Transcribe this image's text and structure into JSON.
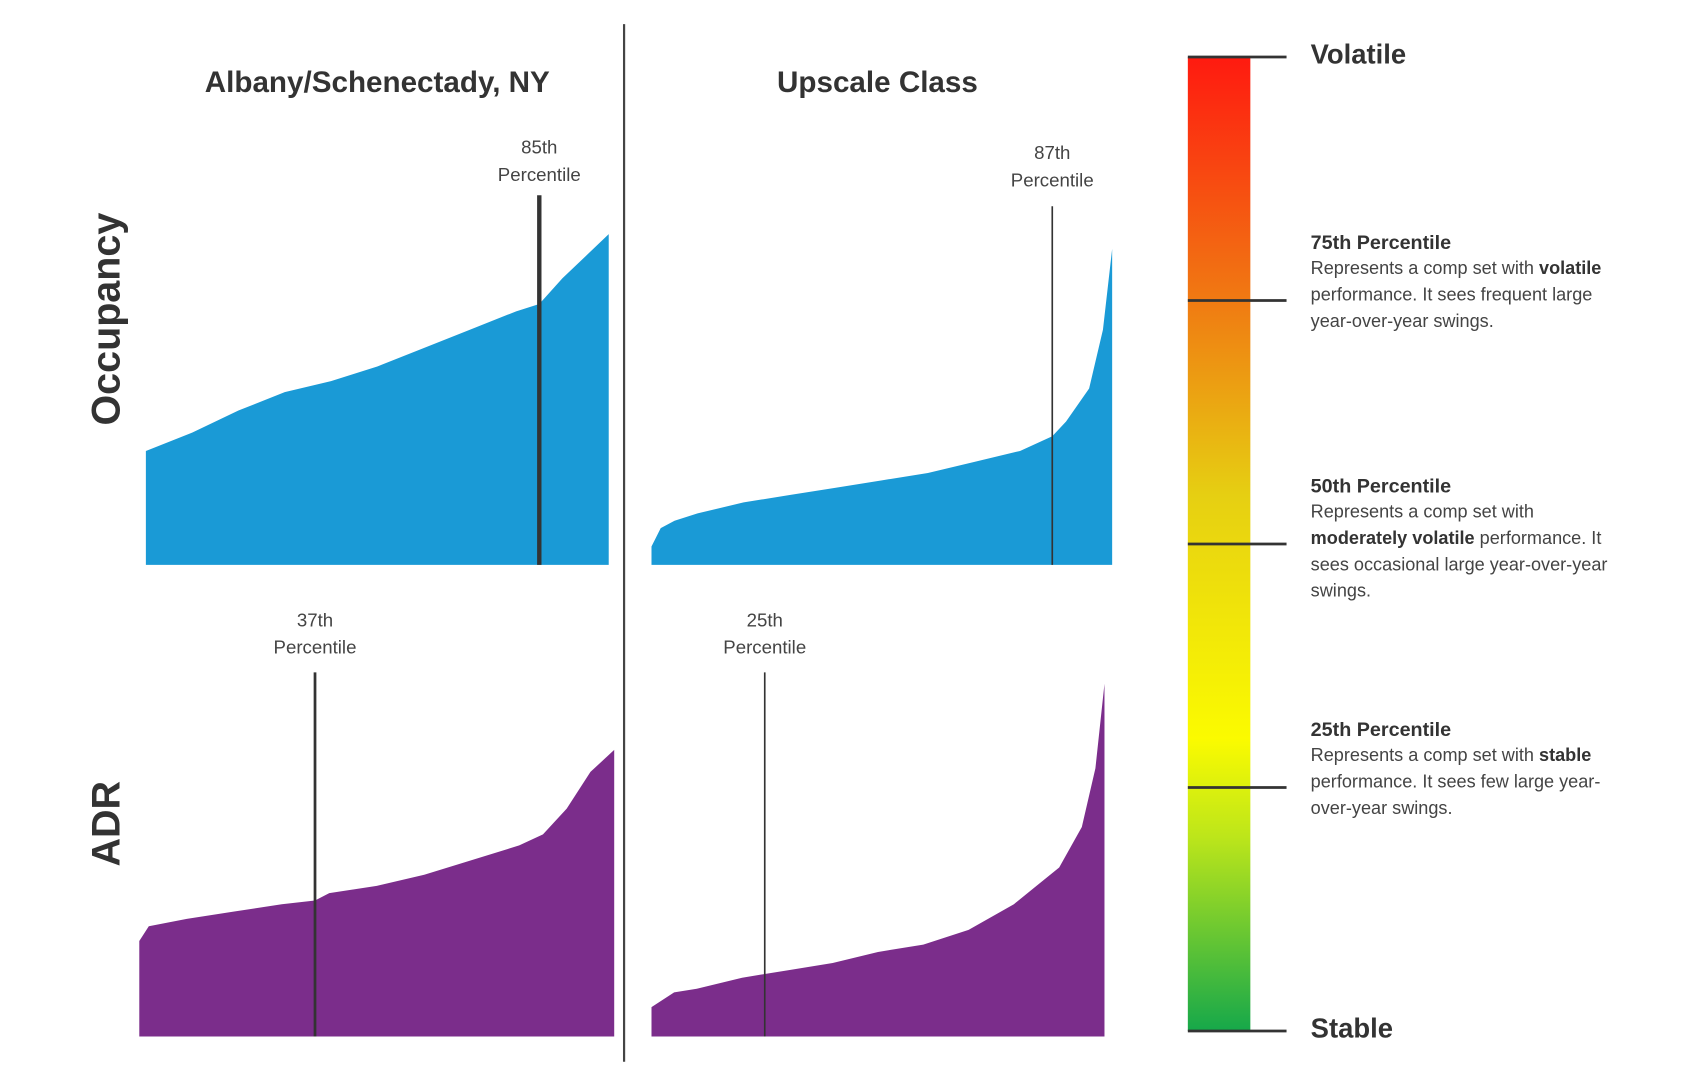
{
  "column_titles": [
    "Albany/Schenectady, NY",
    "Upscale Class"
  ],
  "row_titles": [
    "Occupancy",
    "ADR"
  ],
  "chart_data": [
    {
      "type": "area",
      "color": "#1a9ad6",
      "xlim": [
        0,
        100
      ],
      "ylim": [
        0,
        100
      ],
      "x": [
        0,
        10,
        20,
        30,
        40,
        50,
        60,
        70,
        80,
        85,
        90,
        95,
        100
      ],
      "values": [
        31,
        36,
        42,
        47,
        50,
        54,
        59,
        64,
        69,
        71,
        78,
        84,
        90
      ],
      "marker": {
        "value": 85,
        "label": "85th Percentile"
      }
    },
    {
      "type": "area",
      "color": "#1a9ad6",
      "xlim": [
        0,
        100
      ],
      "ylim": [
        0,
        100
      ],
      "x": [
        0,
        2,
        5,
        10,
        20,
        30,
        40,
        50,
        60,
        70,
        80,
        87,
        90,
        95,
        98,
        100
      ],
      "values": [
        5,
        10,
        12,
        14,
        17,
        19,
        21,
        23,
        25,
        28,
        31,
        35,
        39,
        48,
        64,
        86
      ],
      "marker": {
        "value": 87,
        "label": "87th Percentile"
      }
    },
    {
      "type": "area",
      "color": "#7b2d8b",
      "xlim": [
        0,
        100
      ],
      "ylim": [
        0,
        100
      ],
      "x": [
        0,
        2,
        10,
        20,
        30,
        37,
        40,
        50,
        60,
        70,
        80,
        85,
        90,
        95,
        100
      ],
      "values": [
        26,
        30,
        32,
        34,
        36,
        37,
        39,
        41,
        44,
        48,
        52,
        55,
        62,
        72,
        78
      ],
      "marker": {
        "value": 37,
        "label": "37th Percentile"
      }
    },
    {
      "type": "area",
      "color": "#7b2d8b",
      "xlim": [
        0,
        100
      ],
      "ylim": [
        0,
        100
      ],
      "x": [
        0,
        5,
        10,
        20,
        25,
        30,
        40,
        50,
        60,
        70,
        80,
        90,
        95,
        98,
        100
      ],
      "values": [
        8,
        12,
        13,
        16,
        17,
        18,
        20,
        23,
        25,
        29,
        36,
        46,
        57,
        73,
        96
      ],
      "marker": {
        "value": 25,
        "label": "25th Percentile"
      }
    }
  ],
  "scale": {
    "lim": [
      0,
      100
    ],
    "top_label": "Volatile",
    "bottom_label": "Stable",
    "levels": [
      {
        "value": 75,
        "title": "75th Percentile",
        "text": [
          "Represents a comp set with ",
          "volatile",
          " performance. It sees frequent large year-over-year swings."
        ]
      },
      {
        "value": 50,
        "title": "50th Percentile",
        "text": [
          "Represents a comp set with ",
          "moderately volatile",
          " performance. It sees occasional large year-over-year swings."
        ]
      },
      {
        "value": 25,
        "title": "25th Percentile",
        "text": [
          "Represents a comp set with ",
          "stable",
          " performance. It sees few large year-over-year swings."
        ]
      }
    ]
  }
}
